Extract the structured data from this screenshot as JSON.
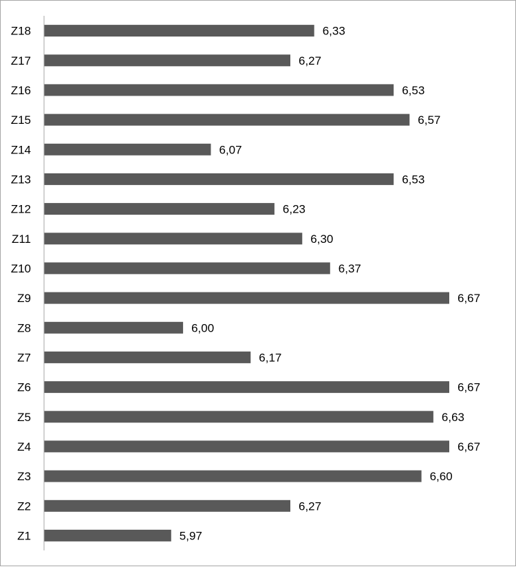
{
  "chart_data": {
    "type": "bar",
    "orientation": "horizontal",
    "categories": [
      "Z18",
      "Z17",
      "Z16",
      "Z15",
      "Z14",
      "Z13",
      "Z12",
      "Z11",
      "Z10",
      "Z9",
      "Z8",
      "Z7",
      "Z6",
      "Z5",
      "Z4",
      "Z3",
      "Z2",
      "Z1"
    ],
    "values": [
      6.33,
      6.27,
      6.53,
      6.57,
      6.07,
      6.53,
      6.23,
      6.3,
      6.37,
      6.67,
      6.0,
      6.17,
      6.67,
      6.63,
      6.67,
      6.6,
      6.27,
      5.97
    ],
    "value_labels": [
      "6,33",
      "6,27",
      "6,53",
      "6,57",
      "6,07",
      "6,53",
      "6,23",
      "6,30",
      "6,37",
      "6,67",
      "6,00",
      "6,17",
      "6,67",
      "6,63",
      "6,67",
      "6,60",
      "6,27",
      "5,97"
    ],
    "xlim": [
      5.65,
      6.67
    ],
    "bar_color": "#595959",
    "axis_color": "#a6a6a6",
    "grid": false,
    "legend": "none",
    "title": "",
    "xlabel": "",
    "ylabel": ""
  }
}
